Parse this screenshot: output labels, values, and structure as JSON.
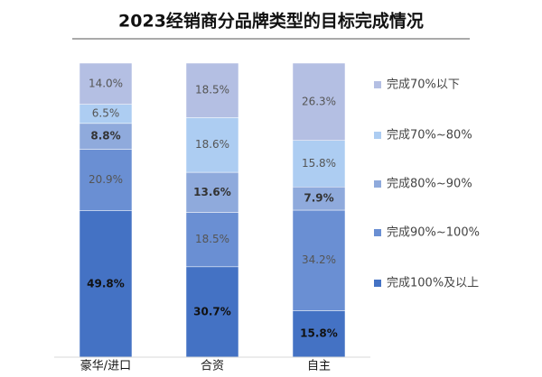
{
  "chart_data": {
    "type": "stacked_bar_100",
    "title": "2023经销商分品牌类型的目标完成情况",
    "categories": [
      "豪华/进口",
      "合资",
      "自主"
    ],
    "series": [
      {
        "name": "完成100%及以上",
        "color": "#4472c4",
        "values": [
          49.8,
          30.7,
          15.8
        ],
        "value_labels": [
          "49.8%",
          "30.7%",
          "15.8%"
        ]
      },
      {
        "name": "完成90%~100%",
        "color": "#6a8fd3",
        "values": [
          20.9,
          18.5,
          34.2
        ],
        "value_labels": [
          "20.9%",
          "18.5%",
          "34.2%"
        ]
      },
      {
        "name": "完成80%~90%",
        "color": "#8faadc",
        "values": [
          8.8,
          13.6,
          7.9
        ],
        "value_labels": [
          "8.8%",
          "13.6%",
          "7.9%"
        ]
      },
      {
        "name": "完成70%~80%",
        "color": "#adcdf2",
        "values": [
          6.5,
          18.6,
          15.8
        ],
        "value_labels": [
          "6.5%",
          "18.6%",
          "15.8%"
        ]
      },
      {
        "name": "完成70%以下",
        "color": "#b4bfe3",
        "values": [
          14.0,
          18.5,
          26.3
        ],
        "value_labels": [
          "14.0%",
          "18.5%",
          "26.3%"
        ]
      }
    ]
  }
}
